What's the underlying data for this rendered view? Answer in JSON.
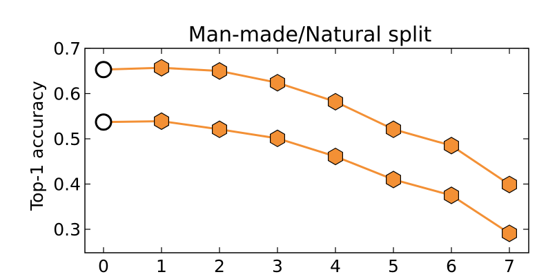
{
  "chart_data": {
    "type": "line",
    "title": "Man-made/Natural split",
    "xlabel": "",
    "ylabel": "Top-1 accuracy",
    "xlim": [
      0,
      7
    ],
    "ylim": [
      0.27,
      0.7
    ],
    "x_ticks": [
      "0",
      "1",
      "2",
      "3",
      "4",
      "5",
      "6",
      "7"
    ],
    "y_ticks": [
      "0.3",
      "0.4",
      "0.5",
      "0.6",
      "0.7"
    ],
    "grid": false,
    "colors": {
      "line": "#f39035",
      "marker_edge": "#000000",
      "baseline_marker": "#ffffff"
    },
    "series": [
      {
        "x": [
          0,
          1,
          2,
          3,
          4,
          5,
          6,
          7
        ],
        "values": [
          0.653,
          0.657,
          0.65,
          0.624,
          0.582,
          0.521,
          0.485,
          0.399
        ]
      },
      {
        "x": [
          0,
          1,
          2,
          3,
          4,
          5,
          6,
          7
        ],
        "values": [
          0.537,
          0.539,
          0.521,
          0.501,
          0.461,
          0.41,
          0.375,
          0.291
        ]
      }
    ]
  }
}
